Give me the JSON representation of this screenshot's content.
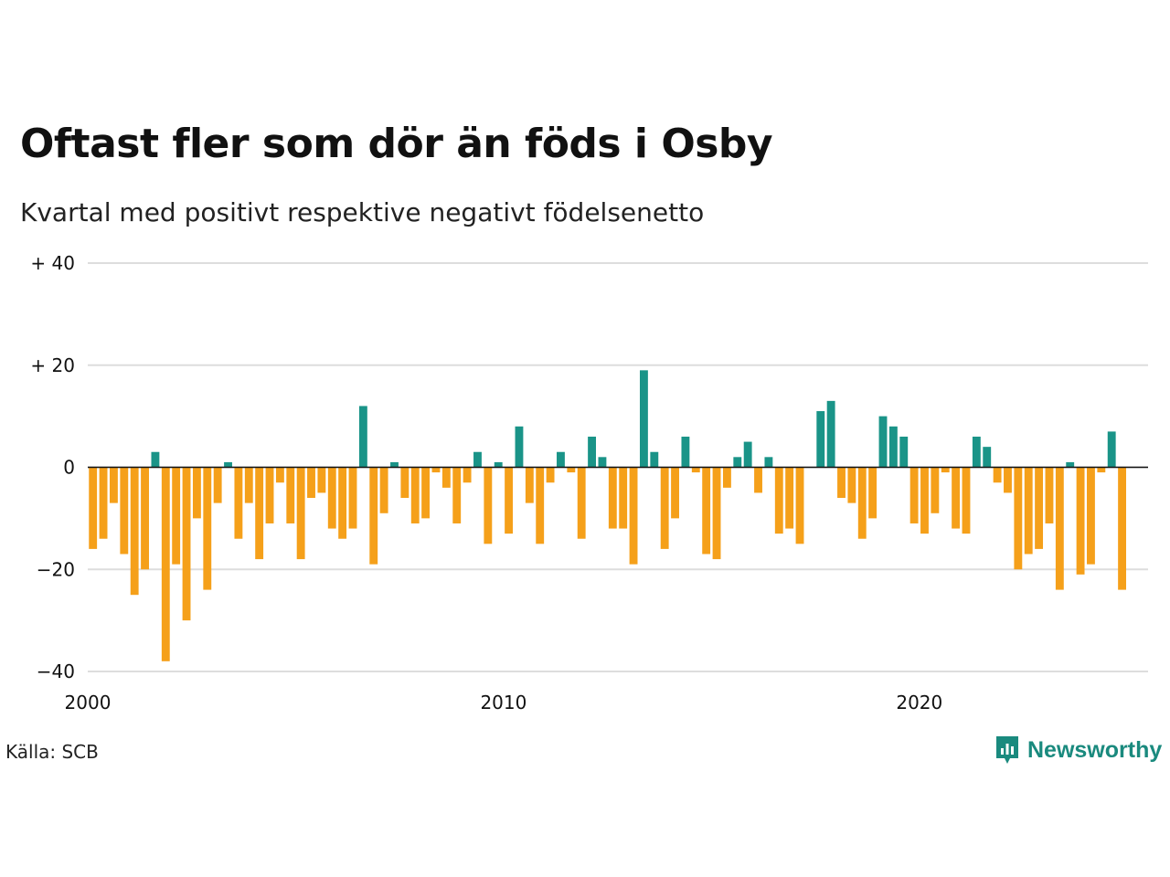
{
  "brand": {
    "name": "Newsworthy",
    "color": "#1a8a7e"
  },
  "source": "Källa: SCB",
  "chart_data": {
    "type": "bar",
    "title": "Oftast fler som dör än föds i Osby",
    "subtitle": "Kvartal med positivt respektive negativt födelsenetto",
    "xlabel": "",
    "ylabel": "",
    "ylim": [
      -40,
      40
    ],
    "xlim": [
      2000,
      2025.5
    ],
    "y_ticks": [
      {
        "value": 40,
        "label": "+ 40"
      },
      {
        "value": 20,
        "label": "+ 20"
      },
      {
        "value": 0,
        "label": "0"
      },
      {
        "value": -20,
        "label": "−20"
      },
      {
        "value": -40,
        "label": "−40"
      }
    ],
    "x_ticks": [
      {
        "value": 2000,
        "label": "2000"
      },
      {
        "value": 2010,
        "label": "2010"
      },
      {
        "value": 2020,
        "label": "2020"
      }
    ],
    "grid": true,
    "legend": "none",
    "colors": {
      "positive": "#1a9488",
      "negative": "#f5a01a"
    },
    "start": "2000Q1",
    "values": [
      -16,
      -14,
      -7,
      -17,
      -25,
      -20,
      3,
      -38,
      -19,
      -30,
      -10,
      -24,
      -7,
      1,
      -14,
      -7,
      -18,
      -11,
      -3,
      -11,
      -18,
      -6,
      -5,
      -12,
      -14,
      -12,
      12,
      -19,
      -9,
      1,
      -6,
      -11,
      -10,
      -1,
      -4,
      -11,
      -3,
      3,
      -15,
      1,
      -13,
      8,
      -7,
      -15,
      -3,
      3,
      -1,
      -14,
      6,
      2,
      -12,
      -12,
      -19,
      19,
      3,
      -16,
      -10,
      6,
      -1,
      -17,
      -18,
      -4,
      2,
      5,
      -5,
      2,
      -13,
      -12,
      -15,
      0,
      11,
      13,
      -6,
      -7,
      -14,
      -10,
      10,
      8,
      6,
      -11,
      -13,
      -9,
      -1,
      -12,
      -13,
      6,
      4,
      -3,
      -5,
      -20,
      -17,
      -16,
      -11,
      -24,
      1,
      -21,
      -19,
      -1,
      7,
      -24
    ]
  }
}
